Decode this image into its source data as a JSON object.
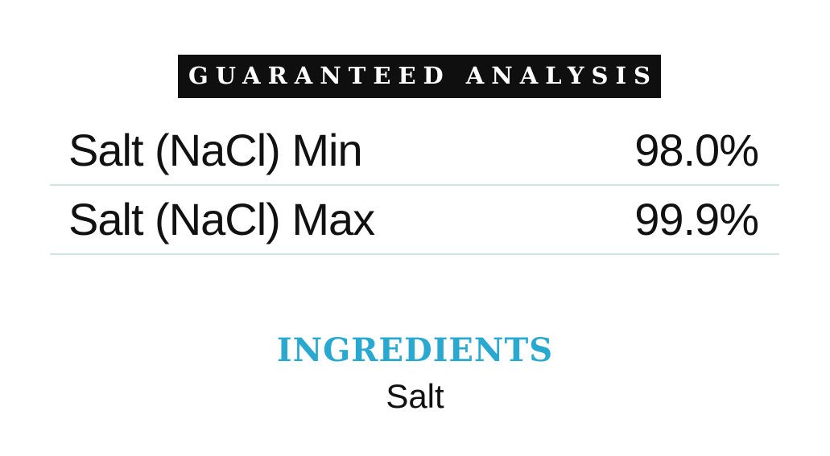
{
  "colors": {
    "banner-bg": "#0f0f0f",
    "banner-text": "#ffffff",
    "divider": "#cfe5e1",
    "body-text": "#111111",
    "ingredients-heading": "#29a8d0"
  },
  "guaranteed_analysis": {
    "title": "GUARANTEED ANALYSIS",
    "rows": [
      {
        "label": "Salt (NaCl) Min",
        "value": "98.0%"
      },
      {
        "label": "Salt (NaCl) Max",
        "value": "99.9%"
      }
    ]
  },
  "ingredients": {
    "title": "INGREDIENTS",
    "items": [
      "Salt"
    ]
  }
}
